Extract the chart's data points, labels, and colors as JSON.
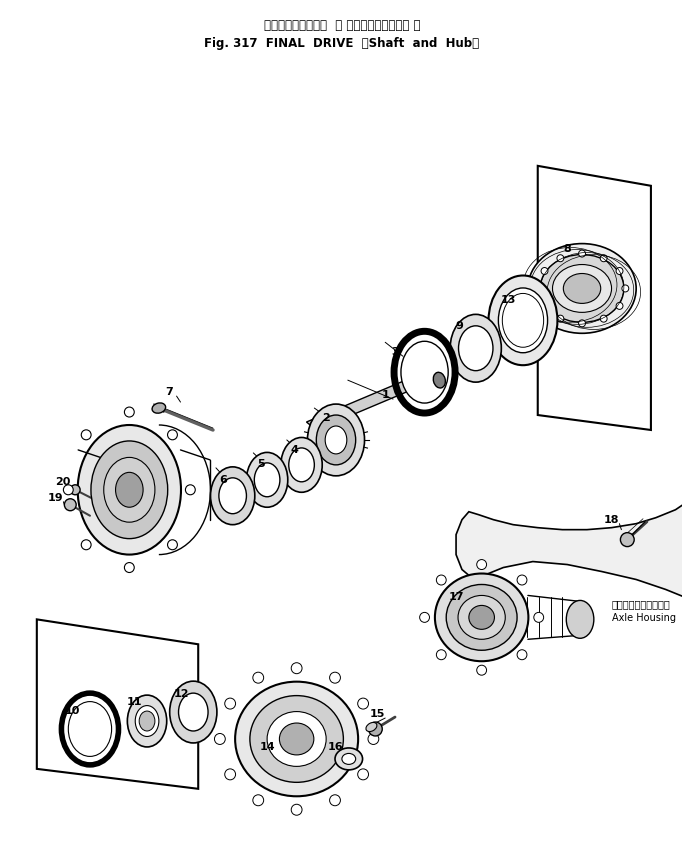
{
  "title_line1": "ファイナルドライブ  （ シャフトおよびハブ ）",
  "title_line2": "Fig. 317  FINAL  DRIVE  （Shaft  and  Hub）",
  "bg_color": "#ffffff",
  "lc": "#000000",
  "fig_width": 6.92,
  "fig_height": 8.5,
  "dpi": 100,
  "axle_jp": "アクスル・ハウジング",
  "axle_en": "Axle Housing"
}
